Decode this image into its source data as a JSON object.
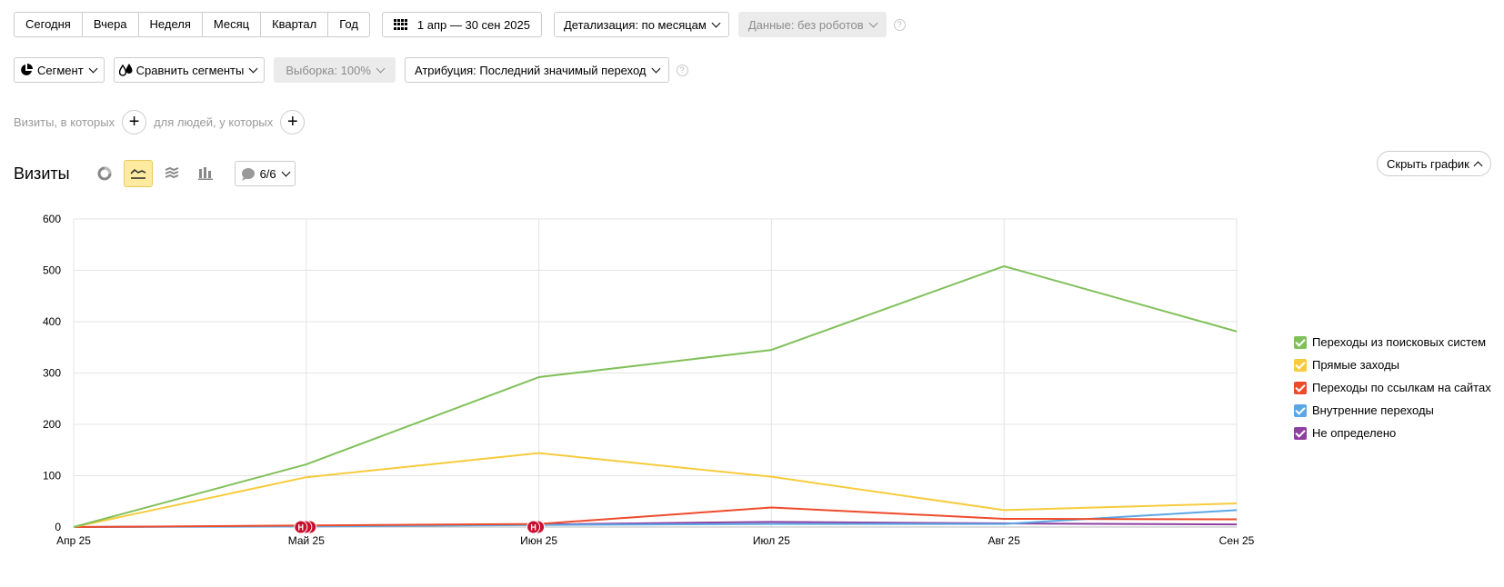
{
  "periods": [
    "Сегодня",
    "Вчера",
    "Неделя",
    "Месяц",
    "Квартал",
    "Год"
  ],
  "date_range": "1 апр — 30 сен 2025",
  "detail": "Детализация: по месяцам",
  "data_filter": "Данные: без роботов",
  "help_glyph": "?",
  "segment": "Сегмент",
  "compare": "Сравнить сегменты",
  "sample": "Выборка: 100%",
  "attribution": "Атрибуция: Последний значимый переход",
  "filter": {
    "visits_text": "Визиты, в которых",
    "people_text": "для людей, у которых",
    "plus": "+"
  },
  "report": {
    "title": "Визиты",
    "notes_count": "6/6",
    "hide_chart": "Скрыть график"
  },
  "note_marker": "Н",
  "chart_data": {
    "type": "line",
    "categories": [
      "Апр 25",
      "Май 25",
      "Июн 25",
      "Июл 25",
      "Авг 25",
      "Сен 25"
    ],
    "ylim": [
      0,
      600
    ],
    "yticks": [
      0,
      100,
      200,
      300,
      400,
      500,
      600
    ],
    "grid": true,
    "legend_position": "right",
    "series": [
      {
        "name": "Переходы из поисковых систем",
        "color": "#80c05a",
        "values": [
          0,
          122,
          292,
          345,
          508,
          381
        ]
      },
      {
        "name": "Прямые заходы",
        "color": "#f7cb3d",
        "values": [
          0,
          97,
          144,
          98,
          33,
          46
        ]
      },
      {
        "name": "Переходы по ссылкам на сайтах",
        "color": "#ee4b2b",
        "values": [
          0,
          3,
          6,
          38,
          16,
          15
        ]
      },
      {
        "name": "Внутренние переходы",
        "color": "#5ba7e6",
        "values": [
          0,
          1,
          4,
          6,
          6,
          33
        ]
      },
      {
        "name": "Не определено",
        "color": "#8e3fa0",
        "values": [
          0,
          2,
          5,
          10,
          7,
          5
        ]
      }
    ],
    "note_markers": [
      {
        "x": "Май 25",
        "count": 3
      },
      {
        "x": "Июн 25",
        "count": 2
      }
    ]
  }
}
